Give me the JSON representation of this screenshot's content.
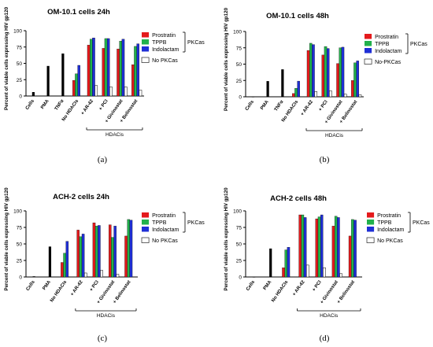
{
  "figure": {
    "y_axis_label": "Percent of viable cells expressing HIV gp120",
    "group_bracket_label": "HDACis",
    "pkca_group_label": "PKCas",
    "colors": {
      "prostratin": "#e41a1c",
      "tppb": "#22b14c",
      "indolactam": "#1f2fd6",
      "none": "#ffffff",
      "single": "#000000"
    }
  },
  "chart_data": [
    {
      "type": "bar",
      "panel": "(a)",
      "title": "OM-10.1 cells 24h",
      "ylim": [
        0,
        100
      ],
      "yticks": [
        0,
        25,
        50,
        75,
        100
      ],
      "legend": [
        "Prostratin",
        "TPPB",
        "Indolactam",
        "No PKCas"
      ],
      "categories": [
        "Cells",
        "PMA",
        "TNFα",
        "No HDACIs",
        "+ AR-42",
        "+ PCI",
        "+ Givinostat",
        "+ Belinostat"
      ],
      "single_values": [
        6,
        46,
        65,
        null,
        null,
        null,
        null,
        null
      ],
      "series": [
        {
          "name": "Prostratin",
          "values": [
            null,
            null,
            null,
            24,
            78,
            73,
            72,
            48
          ]
        },
        {
          "name": "TPPB",
          "values": [
            null,
            null,
            null,
            34,
            87,
            88,
            84,
            76
          ]
        },
        {
          "name": "Indolactam",
          "values": [
            null,
            null,
            null,
            47,
            89,
            88,
            87,
            80
          ]
        },
        {
          "name": "No PKCas",
          "values": [
            null,
            null,
            null,
            null,
            16,
            14,
            14,
            9
          ]
        }
      ]
    },
    {
      "type": "bar",
      "panel": "(b)",
      "title": "OM-10.1 cells 48h",
      "ylim": [
        0,
        100
      ],
      "yticks": [
        0,
        25,
        50,
        75,
        100
      ],
      "legend": [
        "Prostratin",
        "TPPB",
        "Indolactam",
        "No-PKCas"
      ],
      "categories": [
        "Cells",
        "PMA",
        "TNFα",
        "No HDACIs",
        "+ AR-42",
        "+ PCI",
        "+ Givinostat",
        "+ Belinostat"
      ],
      "single_values": [
        0,
        24,
        42,
        null,
        null,
        null,
        null,
        null
      ],
      "series": [
        {
          "name": "Prostratin",
          "values": [
            null,
            null,
            null,
            5,
            71,
            64,
            51,
            25
          ]
        },
        {
          "name": "TPPB",
          "values": [
            null,
            null,
            null,
            13,
            82,
            77,
            75,
            52
          ]
        },
        {
          "name": "Indolactam",
          "values": [
            null,
            null,
            null,
            24,
            80,
            74,
            76,
            55
          ]
        },
        {
          "name": "No-PKCas",
          "values": [
            null,
            null,
            null,
            null,
            8,
            9,
            4,
            3
          ]
        }
      ]
    },
    {
      "type": "bar",
      "panel": "(c)",
      "title": "ACH-2 cells 24h",
      "ylim": [
        0,
        100
      ],
      "yticks": [
        0,
        25,
        50,
        75,
        100
      ],
      "legend": [
        "Prostratin",
        "TPPB",
        "Indolactam",
        "No PKCas"
      ],
      "categories": [
        "Cells",
        "PMA",
        "No HDACIs",
        "+ AR-42",
        "+ PCI",
        "+ Givinostat",
        "+ Belinostat"
      ],
      "single_values": [
        1,
        46,
        null,
        null,
        null,
        null,
        null
      ],
      "series": [
        {
          "name": "Prostratin",
          "values": [
            null,
            null,
            22,
            71,
            82,
            79,
            62
          ]
        },
        {
          "name": "TPPB",
          "values": [
            null,
            null,
            36,
            61,
            77,
            60,
            87
          ]
        },
        {
          "name": "Indolactam",
          "values": [
            null,
            null,
            54,
            65,
            78,
            77,
            86
          ]
        },
        {
          "name": "No PKCas",
          "values": [
            null,
            null,
            null,
            6,
            10,
            4,
            null
          ]
        }
      ]
    },
    {
      "type": "bar",
      "panel": "(d)",
      "title": "ACH-2 cells 48h",
      "ylim": [
        0,
        100
      ],
      "yticks": [
        0,
        25,
        50,
        75,
        100
      ],
      "legend": [
        "Prostratin",
        "TPPB",
        "Indolactam",
        "No PKCas"
      ],
      "categories": [
        "Cells",
        "PMA",
        "No HDACIs",
        "+ AR-42",
        "+ PCI",
        "+ Givinostat",
        "+ Belinostat"
      ],
      "single_values": [
        0,
        43,
        null,
        null,
        null,
        null,
        null
      ],
      "series": [
        {
          "name": "Prostratin",
          "values": [
            null,
            null,
            14,
            94,
            88,
            77,
            62
          ]
        },
        {
          "name": "TPPB",
          "values": [
            null,
            null,
            41,
            94,
            91,
            92,
            87
          ]
        },
        {
          "name": "Indolactam",
          "values": [
            null,
            null,
            45,
            90,
            94,
            90,
            86
          ]
        },
        {
          "name": "No PKCas",
          "values": [
            null,
            null,
            null,
            18,
            14,
            5,
            null
          ]
        }
      ]
    }
  ]
}
